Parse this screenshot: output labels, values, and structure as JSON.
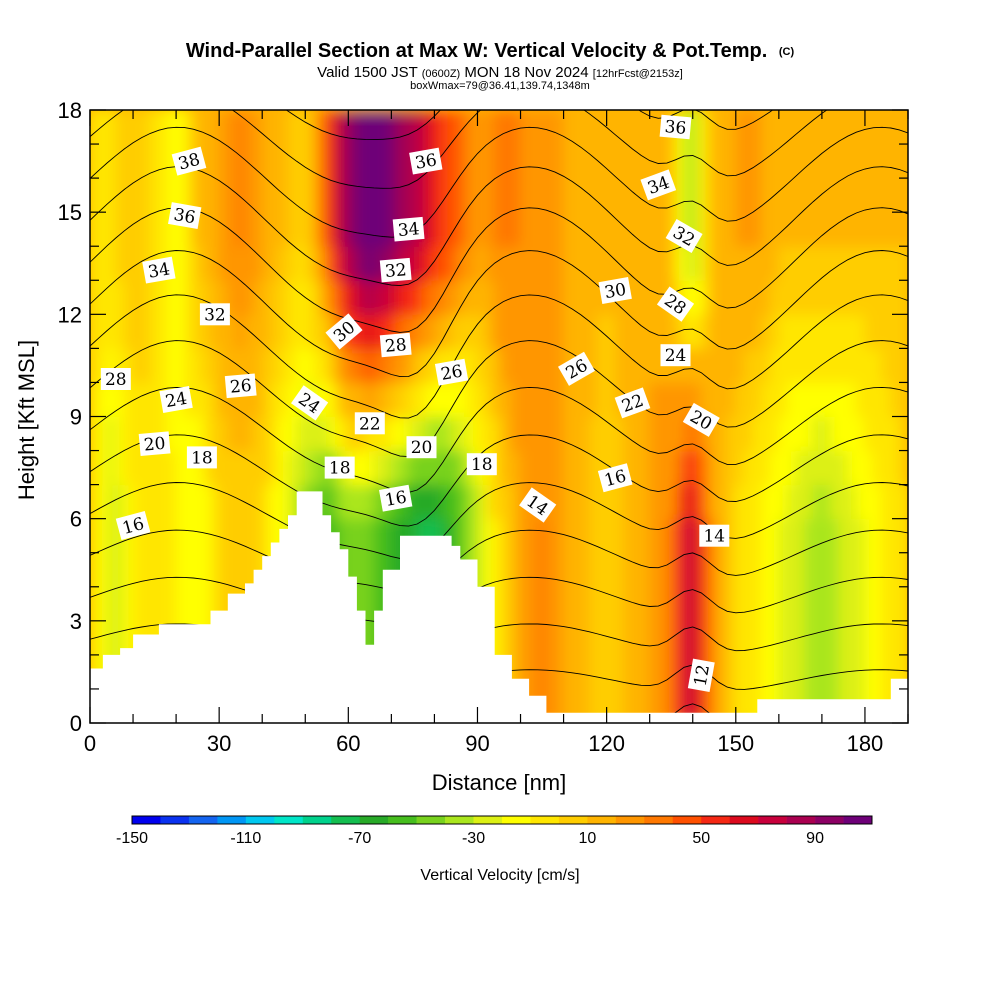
{
  "chart_data": {
    "type": "heatmap",
    "title": "Wind-Parallel Section at Max W: Vertical Velocity & Pot.Temp.",
    "title_mark": "(C)",
    "subtitle_parts": [
      "Valid 1500 JST ",
      "(0600Z)",
      " MON 18 Nov 2024 ",
      "[12hrFcst@2153z]"
    ],
    "subtitle2": "boxWmax=79@36.41,139.74,1348m",
    "xlabel": "Distance [nm]",
    "ylabel": "Height [Kft MSL]",
    "xlim": [
      0,
      190
    ],
    "ylim": [
      0,
      18
    ],
    "x_ticks": [
      0,
      30,
      60,
      90,
      120,
      150,
      180
    ],
    "y_ticks": [
      0,
      3,
      6,
      9,
      12,
      15,
      18
    ],
    "colorbar": {
      "label": "Vertical Velocity [cm/s]",
      "range": [
        -150,
        110
      ],
      "tick_labels": [
        -150,
        -110,
        -70,
        -30,
        10,
        50,
        90
      ],
      "colors": [
        "#0000ee",
        "#0a32f0",
        "#1464f0",
        "#0096f5",
        "#00c8f0",
        "#00e6c8",
        "#00d28c",
        "#14be50",
        "#28aa28",
        "#46be1e",
        "#78d21e",
        "#aae61e",
        "#dcf014",
        "#ffff00",
        "#ffe600",
        "#ffcd00",
        "#ffb400",
        "#ff9600",
        "#ff7800",
        "#ff5000",
        "#f52814",
        "#dc0a1e",
        "#c8003c",
        "#aa0050",
        "#8c0064",
        "#6e0078"
      ]
    },
    "vertical_velocity_profile": {
      "x": [
        0,
        5,
        10,
        15,
        20,
        25,
        30,
        35,
        40,
        45,
        50,
        55,
        60,
        65,
        70,
        75,
        80,
        85,
        90,
        95,
        100,
        105,
        110,
        115,
        120,
        125,
        130,
        135,
        138,
        140,
        142,
        145,
        150,
        155,
        160,
        165,
        170,
        175,
        180,
        185,
        190
      ],
      "w_low": [
        0,
        -30,
        -10,
        0,
        -10,
        -20,
        0,
        5,
        0,
        -20,
        -40,
        -60,
        -40,
        -50,
        -60,
        -70,
        -75,
        -60,
        -30,
        0,
        20,
        30,
        20,
        10,
        5,
        10,
        20,
        30,
        60,
        80,
        50,
        20,
        0,
        -10,
        -20,
        -30,
        -35,
        -30,
        -20,
        -10,
        0
      ],
      "w_high": [
        0,
        0,
        10,
        0,
        -20,
        10,
        20,
        30,
        20,
        10,
        0,
        40,
        90,
        110,
        100,
        80,
        60,
        40,
        20,
        30,
        30,
        20,
        20,
        15,
        10,
        15,
        20,
        10,
        -30,
        -40,
        -20,
        10,
        20,
        20,
        10,
        10,
        10,
        10,
        10,
        10,
        10
      ]
    },
    "theta_contours": [
      12,
      14,
      16,
      18,
      20,
      22,
      24,
      26,
      28,
      30,
      32,
      34,
      36,
      38
    ],
    "contour_labels": [
      {
        "text": "38",
        "x": 23,
        "y": 16.5,
        "angle": -15
      },
      {
        "text": "36",
        "x": 22,
        "y": 14.9,
        "angle": 10
      },
      {
        "text": "34",
        "x": 16,
        "y": 13.3,
        "angle": -10
      },
      {
        "text": "32",
        "x": 29,
        "y": 12.0,
        "angle": 0
      },
      {
        "text": "28",
        "x": 6,
        "y": 10.1,
        "angle": 0
      },
      {
        "text": "26",
        "x": 35,
        "y": 9.9,
        "angle": -5
      },
      {
        "text": "24",
        "x": 20,
        "y": 9.5,
        "angle": -10
      },
      {
        "text": "24",
        "x": 51,
        "y": 9.4,
        "angle": 35
      },
      {
        "text": "20",
        "x": 15,
        "y": 8.2,
        "angle": -5
      },
      {
        "text": "18",
        "x": 26,
        "y": 7.8,
        "angle": 0
      },
      {
        "text": "16",
        "x": 10,
        "y": 5.8,
        "angle": -15
      },
      {
        "text": "36",
        "x": 78,
        "y": 16.5,
        "angle": -10
      },
      {
        "text": "34",
        "x": 74,
        "y": 14.5,
        "angle": -5
      },
      {
        "text": "32",
        "x": 71,
        "y": 13.3,
        "angle": -5
      },
      {
        "text": "30",
        "x": 59,
        "y": 11.5,
        "angle": -40
      },
      {
        "text": "28",
        "x": 71,
        "y": 11.1,
        "angle": -5
      },
      {
        "text": "26",
        "x": 84,
        "y": 10.3,
        "angle": -10
      },
      {
        "text": "22",
        "x": 65,
        "y": 8.8,
        "angle": 0
      },
      {
        "text": "20",
        "x": 77,
        "y": 8.1,
        "angle": 0
      },
      {
        "text": "18",
        "x": 58,
        "y": 7.5,
        "angle": 0
      },
      {
        "text": "18",
        "x": 91,
        "y": 7.6,
        "angle": 0
      },
      {
        "text": "16",
        "x": 71,
        "y": 6.6,
        "angle": -10
      },
      {
        "text": "14",
        "x": 104,
        "y": 6.4,
        "angle": 35
      },
      {
        "text": "26",
        "x": 113,
        "y": 10.4,
        "angle": -30
      },
      {
        "text": "22",
        "x": 126,
        "y": 9.4,
        "angle": -20
      },
      {
        "text": "16",
        "x": 122,
        "y": 7.2,
        "angle": -15
      },
      {
        "text": "30",
        "x": 122,
        "y": 12.7,
        "angle": -10
      },
      {
        "text": "36",
        "x": 136,
        "y": 17.5,
        "angle": 5
      },
      {
        "text": "34",
        "x": 132,
        "y": 15.8,
        "angle": -20
      },
      {
        "text": "32",
        "x": 138,
        "y": 14.3,
        "angle": 30
      },
      {
        "text": "28",
        "x": 136,
        "y": 12.3,
        "angle": 35
      },
      {
        "text": "24",
        "x": 136,
        "y": 10.8,
        "angle": 0
      },
      {
        "text": "20",
        "x": 142,
        "y": 8.9,
        "angle": 30
      },
      {
        "text": "14",
        "x": 145,
        "y": 5.5,
        "angle": 0
      },
      {
        "text": "12",
        "x": 142,
        "y": 1.4,
        "angle": -80
      }
    ],
    "terrain": {
      "x": [
        0,
        3,
        3,
        7,
        7,
        10,
        10,
        16,
        16,
        28,
        28,
        32,
        32,
        36,
        36,
        38,
        38,
        40,
        40,
        42,
        42,
        44,
        44,
        46,
        46,
        48,
        48,
        54,
        54,
        56,
        56,
        58,
        58,
        60,
        60,
        62,
        62,
        64,
        64,
        66,
        66,
        68,
        68,
        72,
        72,
        75,
        75,
        84,
        84,
        86,
        86,
        90,
        90,
        94,
        94,
        98,
        98,
        102,
        102,
        106,
        106,
        110,
        110,
        140,
        140,
        155,
        155,
        186,
        186,
        190
      ],
      "terrain_top_kft": [
        1.6,
        1.6,
        2.0,
        2.0,
        2.2,
        2.2,
        2.6,
        2.6,
        2.9,
        2.9,
        3.3,
        3.3,
        3.8,
        3.8,
        4.1,
        4.1,
        4.5,
        4.5,
        4.9,
        4.9,
        5.3,
        5.3,
        5.7,
        5.7,
        6.1,
        6.1,
        6.8,
        6.8,
        6.1,
        6.1,
        5.6,
        5.6,
        5.1,
        5.1,
        4.3,
        4.3,
        3.3,
        3.3,
        2.3,
        2.3,
        3.3,
        3.3,
        4.5,
        4.5,
        5.5,
        5.5,
        5.5,
        5.5,
        5.2,
        5.2,
        4.8,
        4.8,
        4.0,
        4.0,
        2.0,
        2.0,
        1.3,
        1.3,
        0.8,
        0.8,
        0.3,
        0.3,
        0.3,
        0.3,
        0.3,
        0.3,
        0.7,
        0.7,
        1.3,
        1.3
      ]
    }
  }
}
